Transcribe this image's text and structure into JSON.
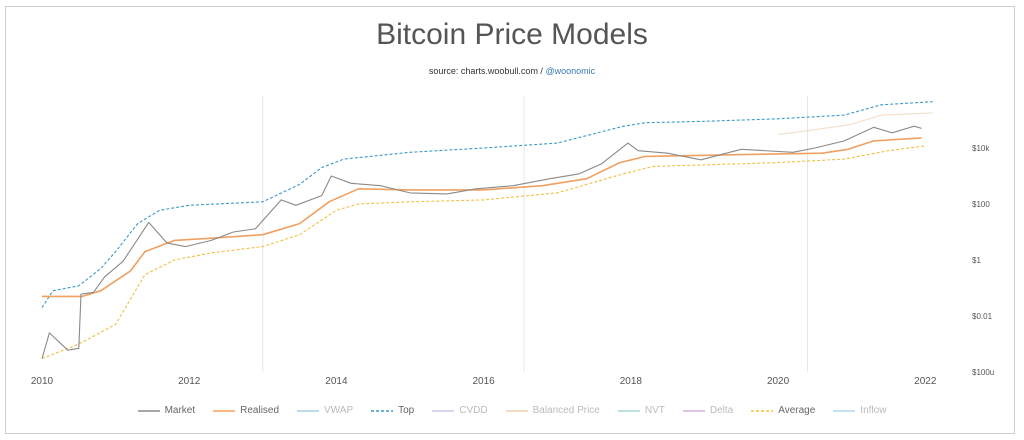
{
  "title": "Bitcoin Price Models",
  "subtitle": {
    "source_text": "source: charts.woobull.com / ",
    "handle": "@woonomic"
  },
  "chart_data": {
    "type": "line",
    "title": "Bitcoin Price Models",
    "xlabel": "",
    "ylabel": "",
    "x_ticks": [
      "2010",
      "2012",
      "2014",
      "2016",
      "2018",
      "2020",
      "2022"
    ],
    "y_scale": "log",
    "y_ticks": [
      "$100u",
      "$0.01",
      "$1",
      "$100",
      "$10k"
    ],
    "ylim": [
      0.0001,
      1000000
    ],
    "xlim": [
      2010,
      2022.2
    ],
    "grid_x_years": [
      2013,
      2016.55,
      2020.4
    ],
    "legend_position": "bottom",
    "series": [
      {
        "name": "Market",
        "color": "#8a8a8a",
        "style": "solid",
        "visible": true,
        "x": [
          2010.0,
          2010.1,
          2010.35,
          2010.5,
          2010.53,
          2010.7,
          2010.85,
          2011.1,
          2011.45,
          2011.7,
          2011.95,
          2012.3,
          2012.6,
          2012.9,
          2013.25,
          2013.45,
          2013.8,
          2013.93,
          2014.2,
          2014.6,
          2015.0,
          2015.5,
          2015.9,
          2016.4,
          2016.9,
          2017.3,
          2017.6,
          2017.96,
          2018.1,
          2018.5,
          2018.95,
          2019.5,
          2020.2,
          2020.5,
          2020.9,
          2021.3,
          2021.55,
          2021.85,
          2021.95
        ],
        "y": [
          0.0003,
          0.0025,
          0.0006,
          0.0007,
          0.06,
          0.07,
          0.25,
          0.9,
          22,
          4,
          3,
          5,
          10,
          13,
          140,
          90,
          200,
          1000,
          550,
          450,
          250,
          230,
          350,
          450,
          800,
          1200,
          2700,
          15000,
          8000,
          6500,
          3800,
          9000,
          7000,
          10000,
          18000,
          55000,
          35000,
          60000,
          50000
        ]
      },
      {
        "name": "Realised",
        "color": "#f0a060",
        "style": "solid",
        "visible": true,
        "x": [
          2010.0,
          2010.55,
          2010.8,
          2011.2,
          2011.4,
          2011.8,
          2012.3,
          2013.0,
          2013.5,
          2013.9,
          2014.3,
          2015.0,
          2016.0,
          2016.8,
          2017.4,
          2017.85,
          2018.2,
          2019.0,
          2019.8,
          2020.6,
          2020.95,
          2021.3,
          2021.95
        ],
        "y": [
          0.05,
          0.05,
          0.08,
          0.4,
          2,
          5,
          6,
          8,
          20,
          120,
          350,
          320,
          320,
          450,
          800,
          3000,
          5000,
          5500,
          6000,
          6500,
          9000,
          18000,
          23000
        ]
      },
      {
        "name": "VWAP",
        "color": "#a8d0e0",
        "style": "solid",
        "visible": false,
        "x": [],
        "y": []
      },
      {
        "name": "Top",
        "color": "#3a9ac8",
        "style": "dashed",
        "visible": true,
        "x": [
          2010.0,
          2010.15,
          2010.5,
          2010.8,
          2011.0,
          2011.3,
          2011.6,
          2012.0,
          2013.0,
          2013.5,
          2013.8,
          2014.1,
          2015.0,
          2016.0,
          2017.0,
          2017.9,
          2018.2,
          2019.0,
          2020.0,
          2020.9,
          2021.4,
          2022.1
        ],
        "y": [
          0.02,
          0.08,
          0.12,
          0.5,
          2,
          20,
          60,
          90,
          120,
          500,
          2000,
          4000,
          7000,
          10000,
          15000,
          60000,
          80000,
          90000,
          110000,
          150000,
          350000,
          450000
        ]
      },
      {
        "name": "CVDD",
        "color": "#c8c8e8",
        "style": "solid",
        "visible": false,
        "x": [],
        "y": []
      },
      {
        "name": "Balanced Price",
        "color": "#f0d0b0",
        "style": "solid",
        "visible": false,
        "x": [
          2020.0,
          2020.5,
          2021.0,
          2021.4,
          2022.1
        ],
        "y": [
          30000,
          45000,
          70000,
          150000,
          180000
        ]
      },
      {
        "name": "NVT",
        "color": "#a8d8d8",
        "style": "solid",
        "visible": false,
        "x": [],
        "y": []
      },
      {
        "name": "Delta",
        "color": "#d0b0d8",
        "style": "solid",
        "visible": false,
        "x": [],
        "y": []
      },
      {
        "name": "Average",
        "color": "#f0c040",
        "style": "dashed",
        "visible": true,
        "x": [
          2010.0,
          2010.5,
          2011.0,
          2011.4,
          2011.8,
          2012.3,
          2013.0,
          2013.5,
          2014.0,
          2014.3,
          2015.0,
          2016.0,
          2017.0,
          2017.9,
          2018.3,
          2019.0,
          2020.0,
          2020.9,
          2021.5,
          2022.0
        ],
        "y": [
          0.0003,
          0.001,
          0.005,
          0.3,
          1,
          1.8,
          3,
          8,
          60,
          100,
          120,
          140,
          250,
          1200,
          2200,
          2500,
          3000,
          4000,
          8000,
          12000
        ]
      },
      {
        "name": "Inflow",
        "color": "#b0d8f0",
        "style": "solid",
        "visible": false,
        "x": [],
        "y": []
      }
    ]
  },
  "legend": [
    {
      "name": "Market",
      "color": "#8a8a8a",
      "style": "solid",
      "faded": false
    },
    {
      "name": "Realised",
      "color": "#f0a060",
      "style": "solid",
      "faded": false
    },
    {
      "name": "VWAP",
      "color": "#a8d0e0",
      "style": "solid",
      "faded": true
    },
    {
      "name": "Top",
      "color": "#3a9ac8",
      "style": "dashed",
      "faded": false
    },
    {
      "name": "CVDD",
      "color": "#c8c8e8",
      "style": "solid",
      "faded": true
    },
    {
      "name": "Balanced Price",
      "color": "#f0d0b0",
      "style": "solid",
      "faded": true
    },
    {
      "name": "NVT",
      "color": "#a8d8d8",
      "style": "solid",
      "faded": true
    },
    {
      "name": "Delta",
      "color": "#d0b0d8",
      "style": "solid",
      "faded": true
    },
    {
      "name": "Average",
      "color": "#f0c040",
      "style": "dashed",
      "faded": false
    },
    {
      "name": "Inflow",
      "color": "#b0d8f0",
      "style": "solid",
      "faded": true
    }
  ]
}
